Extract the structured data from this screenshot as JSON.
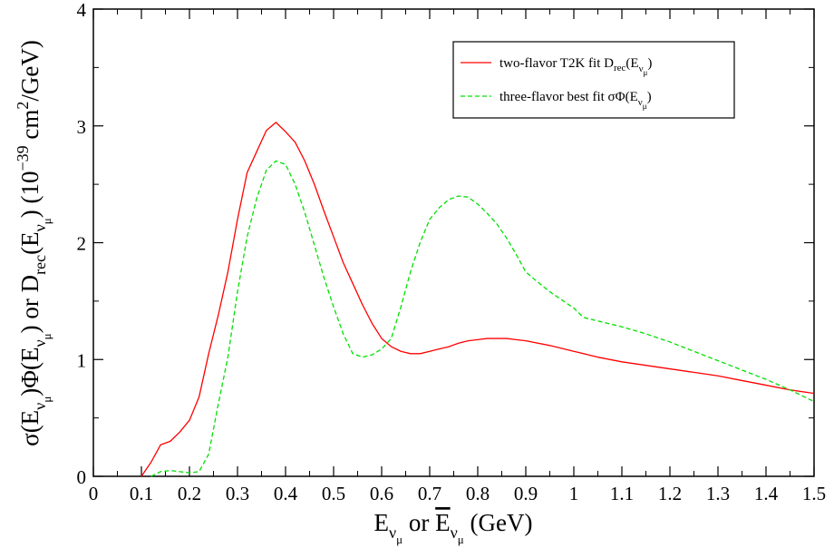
{
  "chart_data": {
    "type": "line",
    "title": "",
    "xlabel": {
      "main": "E",
      "sub": "ν",
      "subsub": "μ",
      "or": " or ",
      "main2": "E",
      "sub2": "ν",
      "subsub2": "μ",
      "unit": " (GeV)"
    },
    "ylabel": {
      "p1": "σ(E",
      "p1sub": "ν",
      "p1subsub": "μ",
      "p2": ")Φ(E",
      "p2sub": "ν",
      "p2subsub": "μ",
      "p3": ") or D",
      "p3sub": "rec",
      "p4": "(E",
      "p4sub": "ν",
      "p4subsub": "μ",
      "p5": ") (10",
      "p5sup": "−39",
      "p6": " cm",
      "p6sup": "2",
      "p7": "/GeV)"
    },
    "xlim": [
      0,
      1.5
    ],
    "ylim": [
      0,
      4
    ],
    "xticks": [
      0,
      0.1,
      0.2,
      0.3,
      0.4,
      0.5,
      0.6,
      0.7,
      0.8,
      0.9,
      1,
      1.1,
      1.2,
      1.3,
      1.4,
      1.5
    ],
    "xtick_labels": [
      "0",
      "0.1",
      "0.2",
      "0.3",
      "0.4",
      "0.5",
      "0.6",
      "0.7",
      "0.8",
      "0.9",
      "1",
      "1.1",
      "1.2",
      "1.3",
      "1.4",
      "1.5"
    ],
    "yticks": [
      0,
      1,
      2,
      3,
      4
    ],
    "ytick_labels": [
      "0",
      "1",
      "2",
      "3",
      "4"
    ],
    "grid": false,
    "legend_position": "top-right",
    "series": [
      {
        "name": {
          "pre": "two-flavor T2K fit D",
          "sub": "rec",
          "mid": "(E",
          "sub2": "ν",
          "subsub2": "μ",
          "post": ")"
        },
        "color": "#ff0000",
        "dash": "solid",
        "x": [
          0.1,
          0.12,
          0.14,
          0.16,
          0.18,
          0.2,
          0.22,
          0.24,
          0.26,
          0.28,
          0.3,
          0.32,
          0.34,
          0.36,
          0.38,
          0.4,
          0.42,
          0.44,
          0.46,
          0.48,
          0.5,
          0.52,
          0.54,
          0.56,
          0.58,
          0.6,
          0.62,
          0.64,
          0.66,
          0.68,
          0.7,
          0.72,
          0.74,
          0.76,
          0.78,
          0.8,
          0.82,
          0.84,
          0.86,
          0.88,
          0.9,
          0.95,
          1.0,
          1.05,
          1.1,
          1.15,
          1.2,
          1.25,
          1.3,
          1.35,
          1.4,
          1.45,
          1.5
        ],
        "y": [
          0.0,
          0.12,
          0.27,
          0.3,
          0.38,
          0.48,
          0.68,
          1.05,
          1.38,
          1.75,
          2.2,
          2.6,
          2.78,
          2.96,
          3.03,
          2.95,
          2.86,
          2.7,
          2.5,
          2.27,
          2.05,
          1.83,
          1.65,
          1.47,
          1.31,
          1.18,
          1.11,
          1.07,
          1.05,
          1.05,
          1.07,
          1.09,
          1.11,
          1.14,
          1.16,
          1.17,
          1.18,
          1.18,
          1.18,
          1.17,
          1.16,
          1.12,
          1.07,
          1.02,
          0.98,
          0.95,
          0.92,
          0.89,
          0.86,
          0.82,
          0.78,
          0.74,
          0.71
        ]
      },
      {
        "name": {
          "pre": "three-flavor best fit σΦ(E",
          "sub": "ν",
          "subsub": "μ",
          "post": ")"
        },
        "color": "#00e000",
        "dash": "dashed",
        "x": [
          0.12,
          0.14,
          0.16,
          0.18,
          0.2,
          0.22,
          0.24,
          0.26,
          0.28,
          0.3,
          0.32,
          0.34,
          0.36,
          0.38,
          0.4,
          0.42,
          0.44,
          0.46,
          0.48,
          0.5,
          0.52,
          0.54,
          0.56,
          0.58,
          0.6,
          0.62,
          0.64,
          0.66,
          0.68,
          0.7,
          0.72,
          0.74,
          0.76,
          0.78,
          0.8,
          0.82,
          0.84,
          0.86,
          0.88,
          0.9,
          0.92,
          0.95,
          1.0,
          1.02,
          1.05,
          1.1,
          1.15,
          1.2,
          1.25,
          1.3,
          1.35,
          1.4,
          1.45,
          1.5
        ],
        "y": [
          0.0,
          0.04,
          0.05,
          0.04,
          0.03,
          0.04,
          0.19,
          0.62,
          1.02,
          1.58,
          2.05,
          2.38,
          2.62,
          2.7,
          2.67,
          2.5,
          2.26,
          1.98,
          1.7,
          1.45,
          1.22,
          1.05,
          1.02,
          1.04,
          1.09,
          1.18,
          1.45,
          1.75,
          2.0,
          2.2,
          2.3,
          2.37,
          2.4,
          2.39,
          2.33,
          2.25,
          2.16,
          2.04,
          1.9,
          1.75,
          1.68,
          1.58,
          1.44,
          1.36,
          1.33,
          1.28,
          1.22,
          1.15,
          1.07,
          0.99,
          0.91,
          0.83,
          0.74,
          0.64
        ]
      }
    ]
  }
}
